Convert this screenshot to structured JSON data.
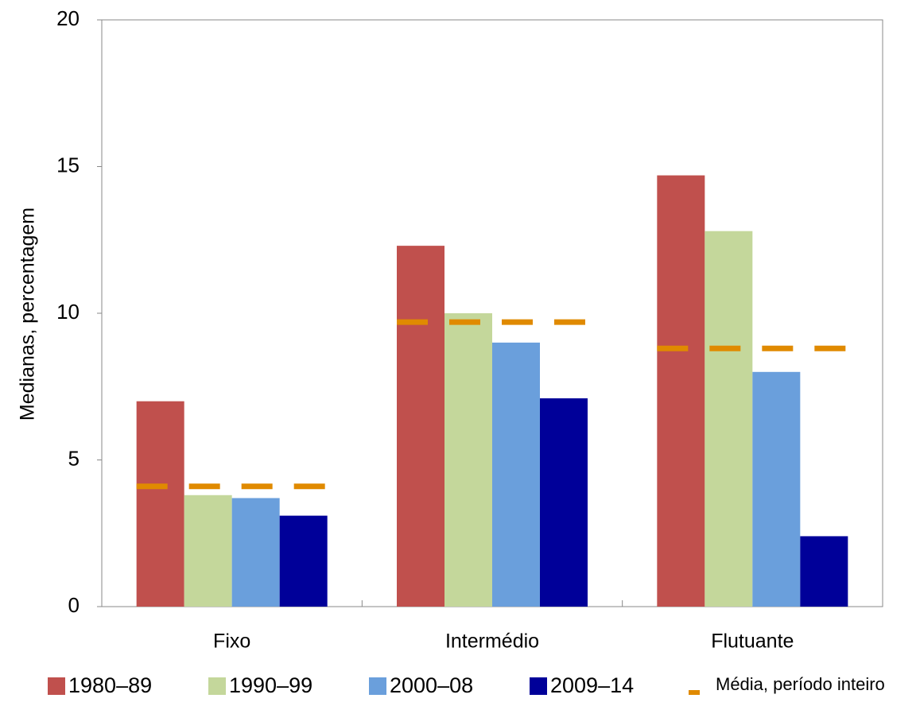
{
  "chart_data": {
    "type": "bar",
    "y_label": "Medianas, percentagem",
    "categories": [
      "Fixo",
      "Intermédio",
      "Flutuante"
    ],
    "series": [
      {
        "name": "1980–89",
        "color": "#c0504d",
        "values": [
          7.0,
          12.3,
          14.7
        ]
      },
      {
        "name": "1990–99",
        "color": "#c4d79b",
        "values": [
          3.8,
          10.0,
          12.8
        ]
      },
      {
        "name": "2000–08",
        "color": "#6a9fdc",
        "values": [
          3.7,
          9.0,
          8.0
        ]
      },
      {
        "name": "2009–14",
        "color": "#000099",
        "values": [
          3.1,
          7.1,
          2.4
        ]
      }
    ],
    "mean_series": {
      "name": "Média, período inteiro",
      "color": "#e08a00",
      "values": [
        4.1,
        9.7,
        8.8
      ]
    },
    "ylim": [
      0,
      20
    ],
    "yticks": [
      0,
      5,
      10,
      15,
      20
    ],
    "grid": false
  }
}
